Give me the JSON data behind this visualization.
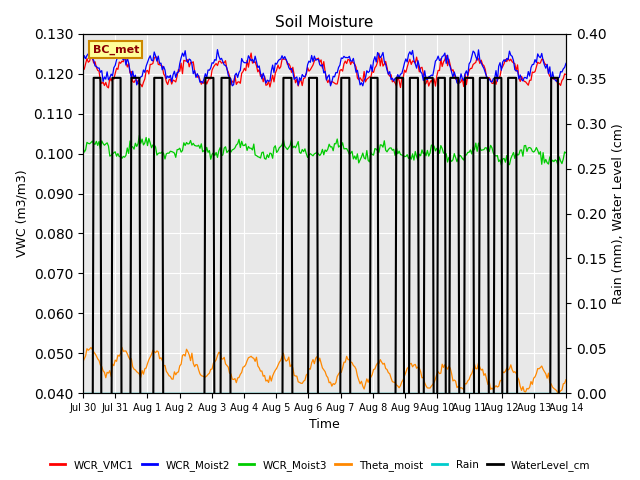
{
  "title": "Soil Moisture",
  "xlabel": "Time",
  "ylabel_left": "VWC (m3/m3)",
  "ylabel_right": "Rain (mm), Water Level (cm)",
  "annotation": "BC_met",
  "ylim_left": [
    0.04,
    0.13
  ],
  "ylim_right": [
    0.0,
    0.4
  ],
  "yticks_left": [
    0.04,
    0.05,
    0.06,
    0.07,
    0.08,
    0.09,
    0.1,
    0.11,
    0.12,
    0.13
  ],
  "yticks_right": [
    0.0,
    0.05,
    0.1,
    0.15,
    0.2,
    0.25,
    0.3,
    0.35,
    0.4
  ],
  "xtick_positions": [
    0,
    1,
    2,
    3,
    4,
    5,
    6,
    7,
    8,
    9,
    10,
    11,
    12,
    13,
    14,
    15
  ],
  "xtick_labels": [
    "Jul 30",
    "Jul 31",
    "Aug 1",
    "Aug 2",
    "Aug 3",
    "Aug 4",
    "Aug 5",
    "Aug 6",
    "Aug 7",
    "Aug 8",
    "Aug 9",
    "Aug 10",
    "Aug 11",
    "Aug 12",
    "Aug 13",
    "Aug 14"
  ],
  "xlim": [
    0,
    15
  ],
  "colors": {
    "WCR_VMC1": "#ff0000",
    "WCR_Moist2": "#0000ff",
    "WCR_Moist3": "#00cc00",
    "Theta_moist": "#ff8800",
    "Rain": "#00cccc",
    "WaterLevel_cm": "#000000"
  },
  "background_color": "#e8e8e8",
  "grid_color": "#ffffff"
}
